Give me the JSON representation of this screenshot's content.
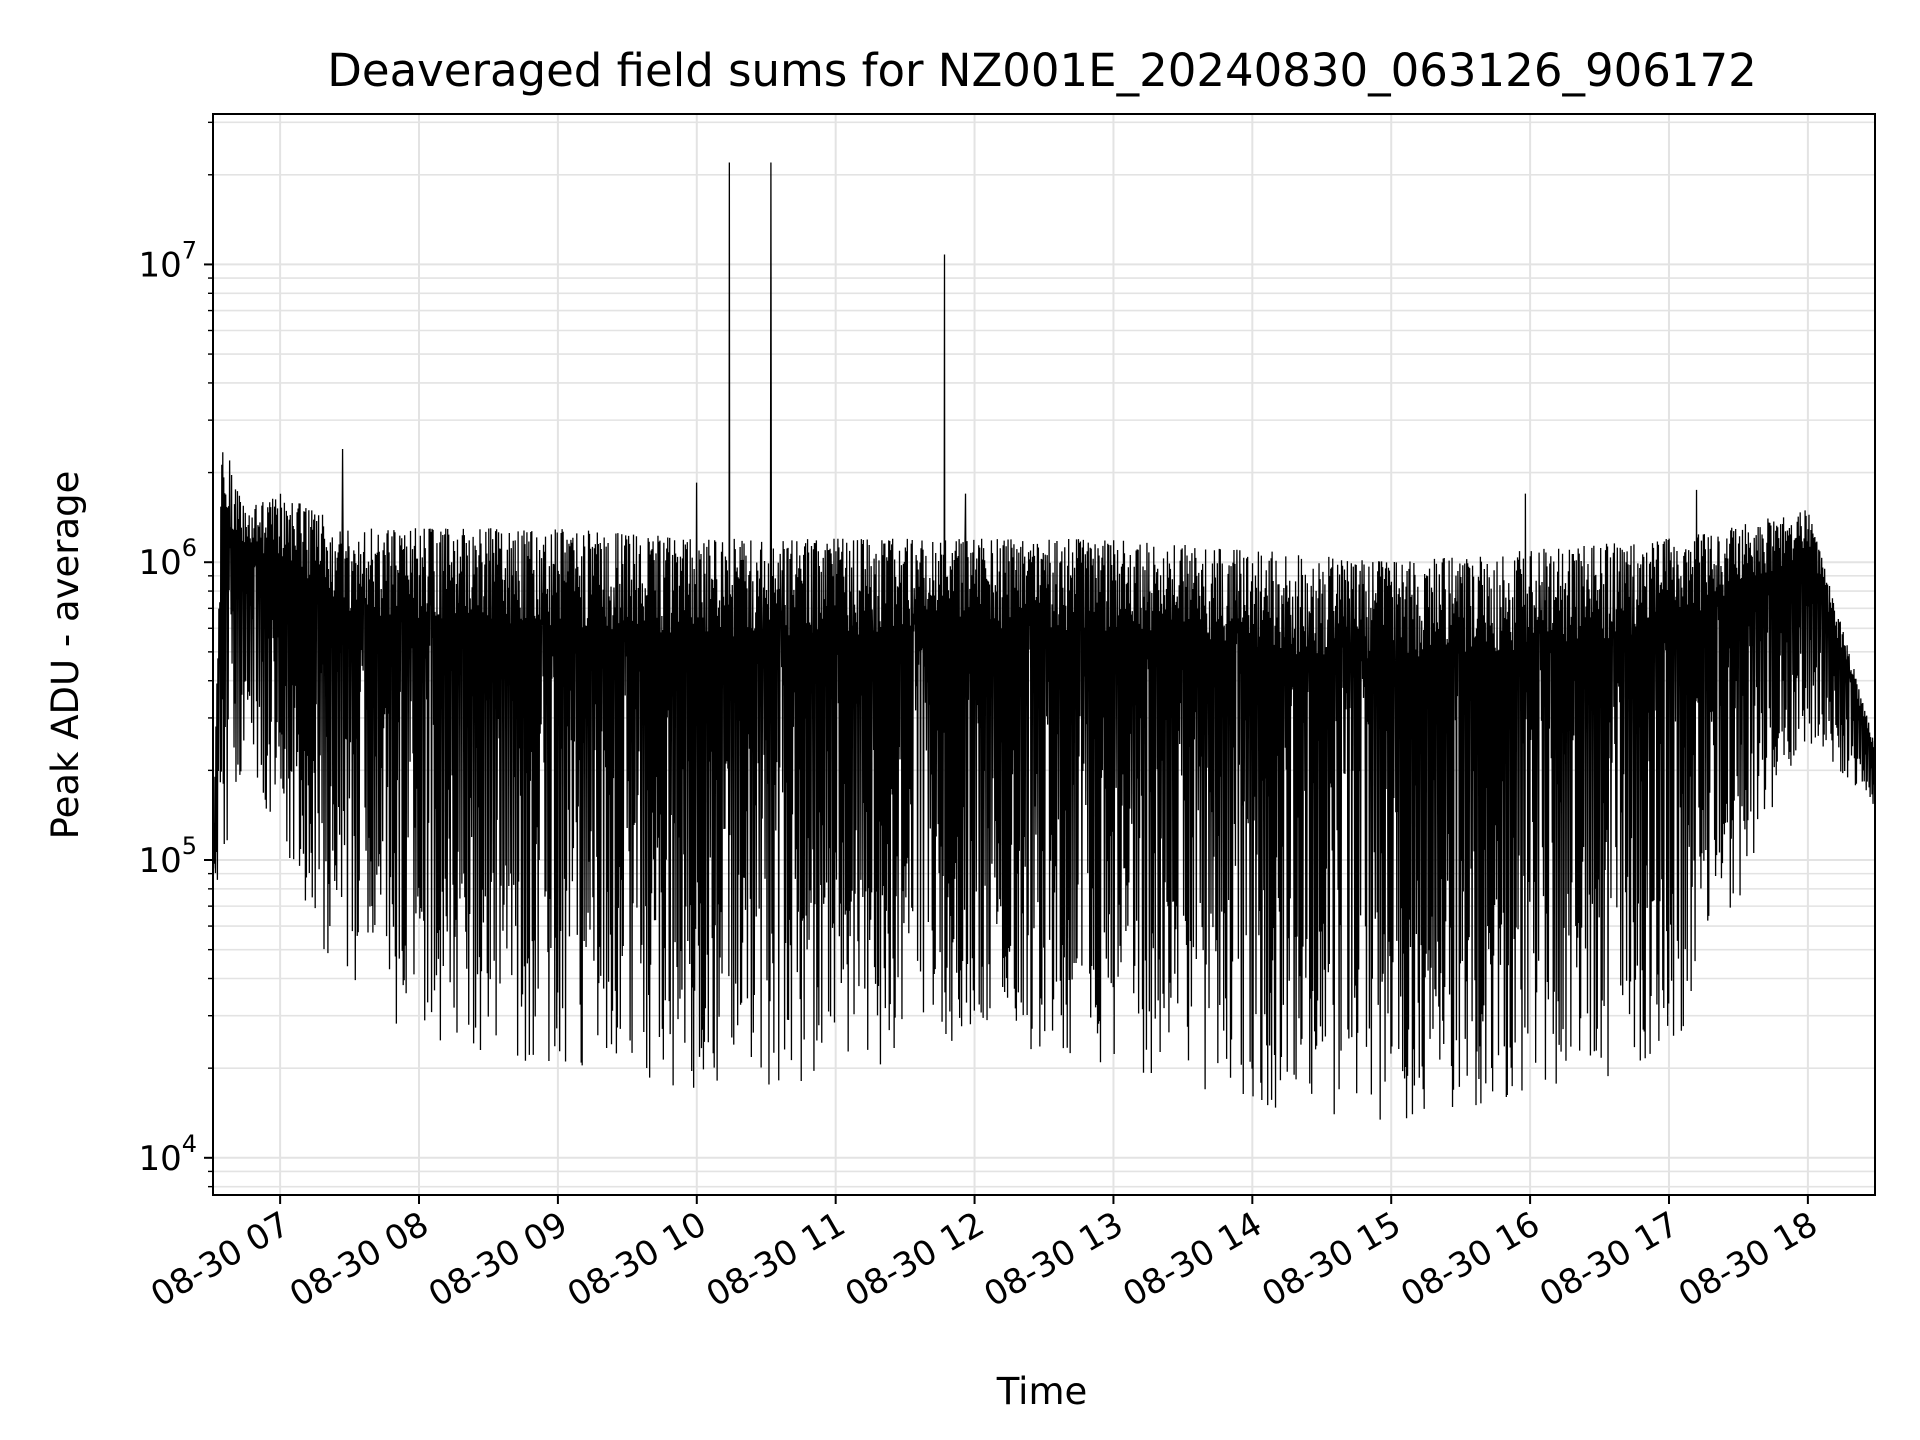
{
  "chart_data": {
    "type": "line",
    "title": "Deaveraged field sums for NZ001E_20240830_063126_906172",
    "xlabel": "Time",
    "ylabel": "Peak ADU - average",
    "x_axis": {
      "type": "time",
      "range": [
        "2024-08-30 06:31",
        "2024-08-30 18:29"
      ],
      "ticks": [
        "2024-08-30 07:00",
        "2024-08-30 08:00",
        "2024-08-30 09:00",
        "2024-08-30 10:00",
        "2024-08-30 11:00",
        "2024-08-30 12:00",
        "2024-08-30 13:00",
        "2024-08-30 14:00",
        "2024-08-30 15:00",
        "2024-08-30 16:00",
        "2024-08-30 17:00",
        "2024-08-30 18:00"
      ],
      "tick_labels": [
        "08-30 07",
        "08-30 08",
        "08-30 09",
        "08-30 10",
        "08-30 11",
        "08-30 12",
        "08-30 13",
        "08-30 14",
        "08-30 15",
        "08-30 16",
        "08-30 17",
        "08-30 18"
      ]
    },
    "y_axis": {
      "scale": "log",
      "range": [
        7500,
        32000000
      ],
      "ticks": [
        {
          "value": 10000,
          "base": "10",
          "exp": "4"
        },
        {
          "value": 100000,
          "base": "10",
          "exp": "5"
        },
        {
          "value": 1000000,
          "base": "10",
          "exp": "6"
        },
        {
          "value": 10000000,
          "base": "10",
          "exp": "7"
        }
      ]
    },
    "grid": true,
    "legend": "none",
    "line_color": "#000000",
    "series": [
      {
        "envelope_hourly": [
          {
            "t": "2024-08-30 06:31",
            "low": 70000,
            "high": 100000
          },
          {
            "t": "2024-08-30 06:35",
            "low": 90000,
            "high": 2700000
          },
          {
            "t": "2024-08-30 06:45",
            "low": 200000,
            "high": 1500000
          },
          {
            "t": "2024-08-30 07:00",
            "low": 120000,
            "high": 1700000
          },
          {
            "t": "2024-08-30 07:30",
            "low": 30000,
            "high": 1300000
          },
          {
            "t": "2024-08-30 08:00",
            "low": 25000,
            "high": 1300000
          },
          {
            "t": "2024-08-30 09:00",
            "low": 20000,
            "high": 1300000
          },
          {
            "t": "2024-08-30 10:00",
            "low": 17000,
            "high": 1200000
          },
          {
            "t": "2024-08-30 11:00",
            "low": 18000,
            "high": 1200000
          },
          {
            "t": "2024-08-30 12:00",
            "low": 25000,
            "high": 1200000
          },
          {
            "t": "2024-08-30 13:00",
            "low": 20000,
            "high": 1200000
          },
          {
            "t": "2024-08-30 14:00",
            "low": 15000,
            "high": 1100000
          },
          {
            "t": "2024-08-30 15:00",
            "low": 13000,
            "high": 1000000
          },
          {
            "t": "2024-08-30 16:00",
            "low": 16000,
            "high": 1100000
          },
          {
            "t": "2024-08-30 17:00",
            "low": 20000,
            "high": 1200000
          },
          {
            "t": "2024-08-30 18:00",
            "low": 250000,
            "high": 1500000
          },
          {
            "t": "2024-08-30 18:29",
            "low": 150000,
            "high": 250000
          }
        ],
        "spikes": [
          {
            "t": "2024-08-30 07:27",
            "value": 2400000
          },
          {
            "t": "2024-08-30 10:00",
            "value": 1850000
          },
          {
            "t": "2024-08-30 10:14",
            "value": 22000000
          },
          {
            "t": "2024-08-30 10:32",
            "value": 22000000
          },
          {
            "t": "2024-08-30 11:47",
            "value": 10800000
          },
          {
            "t": "2024-08-30 11:56",
            "value": 1700000
          },
          {
            "t": "2024-08-30 15:58",
            "value": 1700000
          },
          {
            "t": "2024-08-30 17:12",
            "value": 1750000
          }
        ]
      }
    ]
  }
}
